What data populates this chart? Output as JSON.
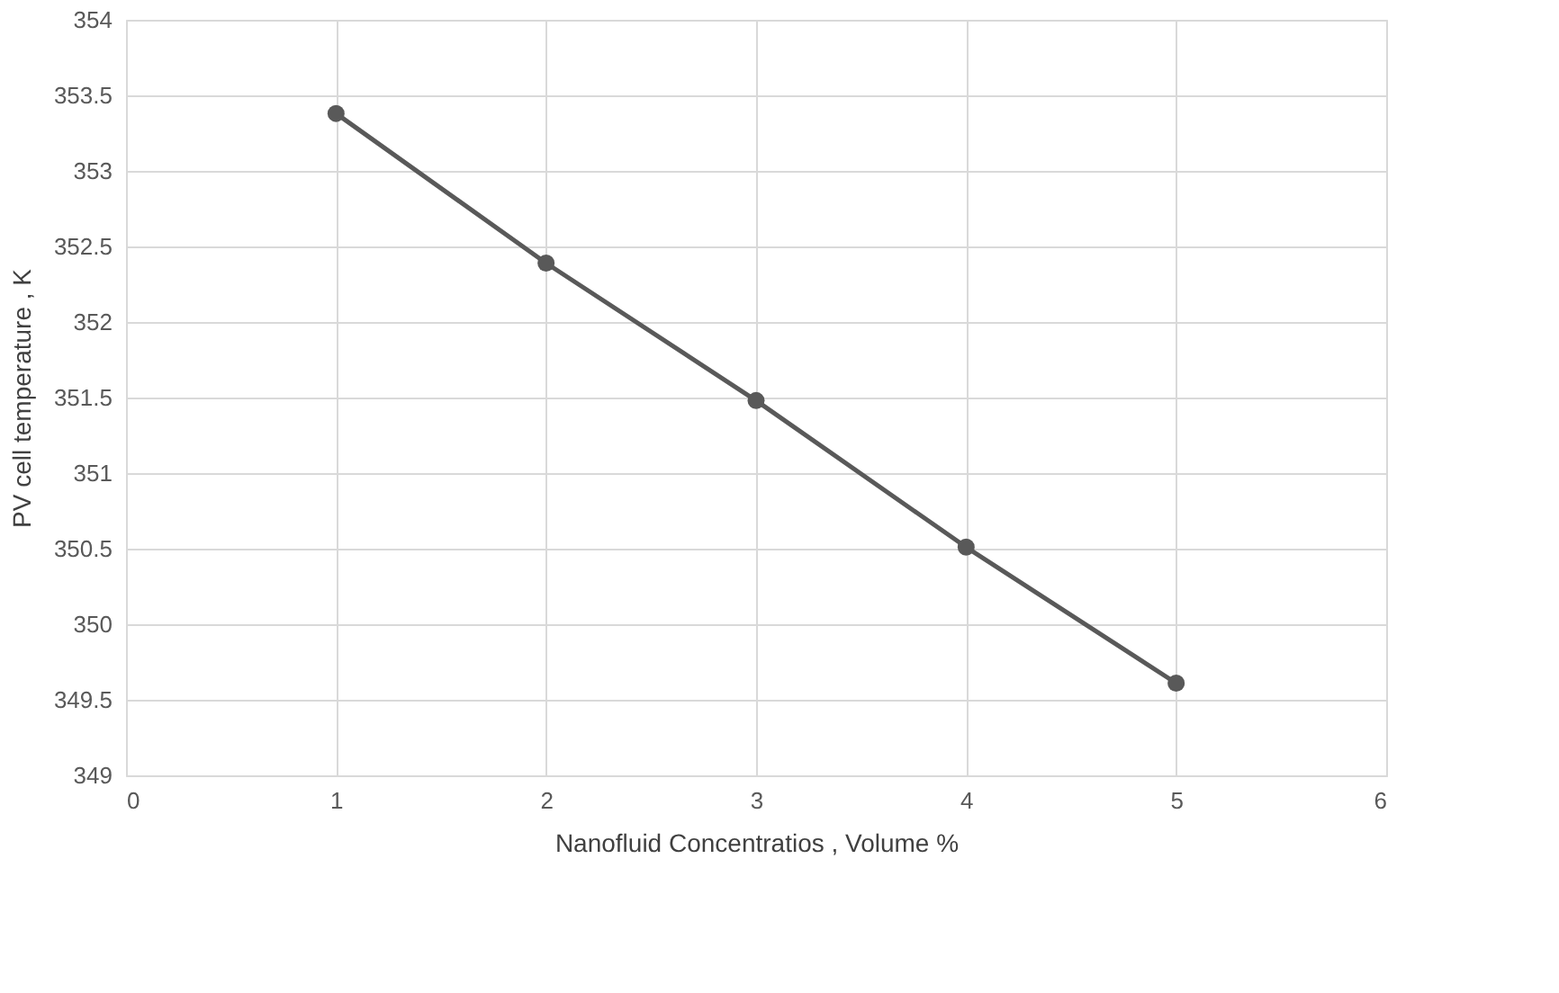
{
  "chart_data": {
    "type": "line",
    "xlabel": "Nanofluid Concentratios , Volume %",
    "ylabel": "PV cell temperature , K",
    "x": [
      1,
      2,
      3,
      4,
      5
    ],
    "series": [
      {
        "color": "#595959",
        "values": [
          353.38,
          352.39,
          351.48,
          350.51,
          349.61
        ]
      }
    ],
    "xlim": [
      0,
      6
    ],
    "xticks": [
      0,
      1,
      2,
      3,
      4,
      5,
      6
    ],
    "ylim": [
      349,
      354
    ],
    "yticks": [
      349,
      349.5,
      350,
      350.5,
      351,
      351.5,
      352,
      352.5,
      353,
      353.5,
      354
    ],
    "grid": true,
    "marker": "circle",
    "line_style": "solid"
  }
}
